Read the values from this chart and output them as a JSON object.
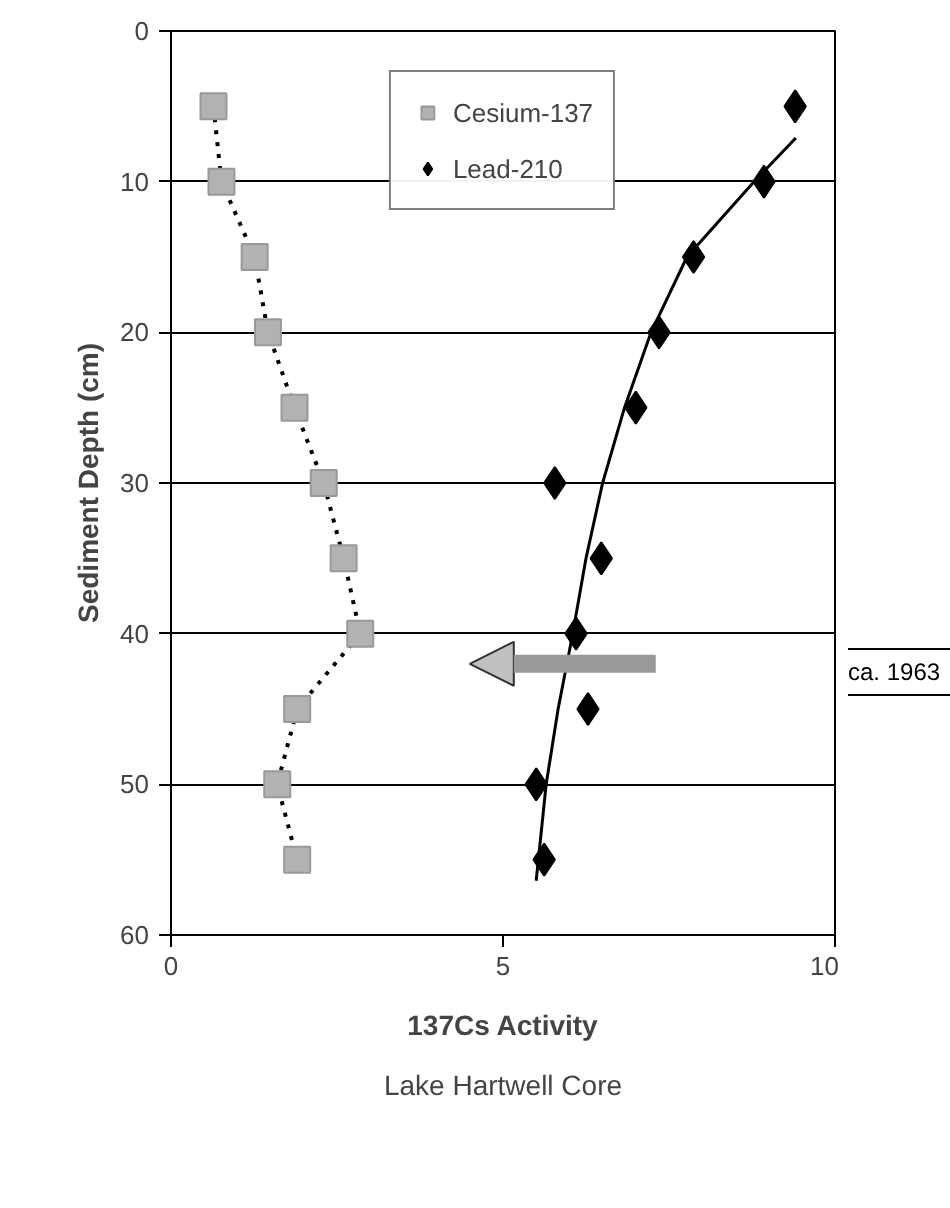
{
  "chart_data": {
    "type": "scatter",
    "title": "Lake Hartwell Core",
    "xlabel": "137Cs Activity",
    "ylabel": "Sediment Depth (cm)",
    "xlim": [
      0,
      10
    ],
    "xticks": [
      0,
      5,
      10
    ],
    "ylim": [
      60,
      0
    ],
    "yticks": [
      0,
      10,
      20,
      30,
      40,
      50,
      60
    ],
    "grid": "y",
    "legend": "top",
    "annotations": [
      "ca. 1963"
    ],
    "series": [
      {
        "name": "Cesium-137",
        "type": "line",
        "marker": "square",
        "line_style": "dotted",
        "color": "#b2b2b2",
        "x": [
          0.64,
          0.76,
          1.26,
          1.46,
          1.86,
          2.3,
          2.6,
          2.85,
          1.9,
          1.6,
          1.9
        ],
        "values": [
          5,
          10,
          15,
          20,
          25,
          30,
          35,
          40,
          45,
          50,
          55
        ]
      },
      {
        "name": "Lead-210",
        "marker": "diamond",
        "color": "#000000",
        "x": [
          9.4,
          8.93,
          7.87,
          7.35,
          7.0,
          5.78,
          6.48,
          6.1,
          6.28,
          5.5,
          5.62
        ],
        "values": [
          5,
          10,
          15,
          20,
          25,
          30,
          35,
          40,
          45,
          50,
          55
        ]
      },
      {
        "type": "line",
        "marker": "none",
        "line_style": "solid",
        "color": "#000000",
        "x": [
          5.5,
          5.65,
          5.83,
          6.05,
          6.25,
          6.5,
          6.83,
          7.23,
          7.77,
          8.78,
          9.41
        ],
        "values": [
          56.4,
          50,
          45,
          40,
          35,
          30,
          25,
          20,
          15,
          10,
          7.1
        ]
      }
    ]
  }
}
